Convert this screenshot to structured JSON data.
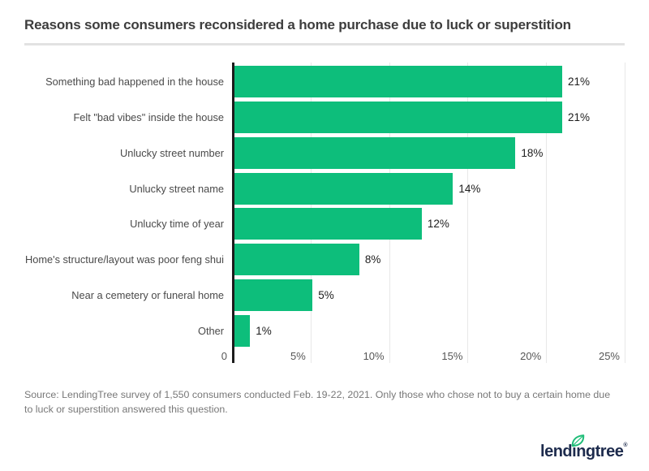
{
  "chart_data": {
    "type": "bar",
    "orientation": "horizontal",
    "title": "Reasons some consumers reconsidered a home purchase due to luck or superstition",
    "categories": [
      "Something bad happened in the house",
      "Felt \"bad vibes\" inside the house",
      "Unlucky street number",
      "Unlucky street name",
      "Unlucky time of year",
      "Home's structure/layout was poor feng shui",
      "Near a cemetery or funeral home",
      "Other"
    ],
    "values": [
      21,
      21,
      18,
      14,
      12,
      8,
      5,
      1
    ],
    "value_suffix": "%",
    "xlabel": "",
    "ylabel": "",
    "xlim": [
      0,
      25
    ],
    "x_ticks": [
      "0",
      "5%",
      "10%",
      "15%",
      "20%",
      "25%"
    ],
    "grid": "vertical-light",
    "legend": "none",
    "bar_color": "#0dbe7b",
    "axis_line_color": "#1c1c1c"
  },
  "source": {
    "lines": [
      "Source: LendingTree survey of 1,550 consumers conducted Feb. 19-22, 2021. Only those who chose not to buy a certain home due",
      "to luck or superstition answered this question."
    ]
  },
  "logo": {
    "text": "lendingtree",
    "registered": "®",
    "navy": "#1d2b4d",
    "leaf_green": "#1fbd78"
  }
}
